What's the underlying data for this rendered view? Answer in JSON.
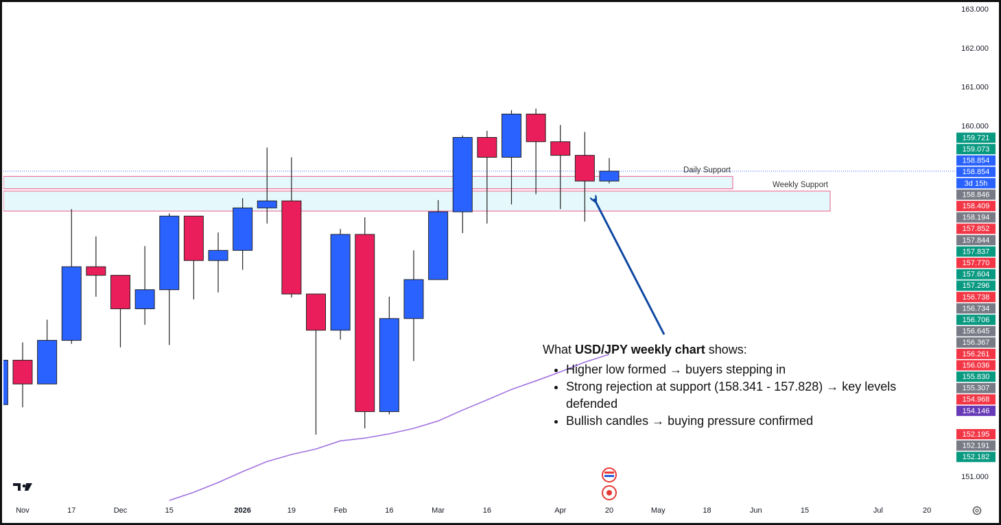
{
  "chart_data": {
    "type": "candlestick",
    "categories": [
      null,
      "Nov",
      null,
      "17",
      null,
      "Dec",
      null,
      "15",
      null,
      null,
      "2026",
      null,
      "19",
      null,
      "Feb",
      null,
      "16",
      null,
      "Mar",
      null,
      "16",
      null,
      null,
      "Apr",
      null,
      "20",
      null,
      "May",
      null,
      "18",
      null,
      "Jun",
      null,
      "15",
      null,
      null,
      "Jul",
      null,
      "20"
    ],
    "open": [
      152.86,
      154.0,
      153.39,
      154.51,
      156.4,
      156.18,
      155.32,
      155.81,
      157.7,
      156.56,
      156.82,
      157.91,
      158.09,
      155.7,
      154.77,
      157.23,
      152.68,
      155.07,
      156.07,
      157.81,
      159.72,
      159.21,
      160.32,
      159.61,
      159.26,
      158.6,
      null,
      null,
      null,
      null,
      null,
      null,
      null,
      null,
      null,
      null,
      null,
      null,
      null
    ],
    "high": [
      154.0,
      154.46,
      155.04,
      157.88,
      157.18,
      156.18,
      156.93,
      157.77,
      157.7,
      157.28,
      158.16,
      159.46,
      159.21,
      155.7,
      157.37,
      157.67,
      155.63,
      156.82,
      158.11,
      159.77,
      159.89,
      160.42,
      160.46,
      160.04,
      159.86,
      159.19,
      null,
      null,
      null,
      null,
      null,
      null,
      null,
      null,
      null,
      null,
      null,
      null,
      null
    ],
    "low": [
      152.86,
      152.79,
      153.39,
      154.42,
      155.63,
      154.33,
      154.91,
      154.39,
      155.56,
      155.74,
      156.32,
      157.51,
      155.61,
      152.09,
      154.53,
      152.25,
      152.61,
      153.98,
      156.07,
      157.26,
      157.51,
      158.0,
      158.26,
      157.88,
      157.56,
      158.54,
      null,
      null,
      null,
      null,
      null,
      null,
      null,
      null,
      null,
      null,
      null,
      null,
      null
    ],
    "close": [
      154.0,
      153.39,
      154.51,
      156.4,
      156.18,
      155.32,
      155.81,
      157.7,
      156.56,
      156.82,
      157.91,
      158.09,
      155.7,
      154.77,
      157.23,
      152.68,
      155.07,
      156.07,
      157.81,
      159.72,
      159.21,
      160.32,
      159.61,
      159.26,
      158.6,
      158.854,
      null,
      null,
      null,
      null,
      null,
      null,
      null,
      null,
      null,
      null,
      null,
      null,
      null
    ],
    "up_color": "#2962ff",
    "down_color": "#e91e5a",
    "moving_average": {
      "color": "#a070e0",
      "values": [
        null,
        null,
        null,
        null,
        null,
        null,
        null,
        150.4,
        150.61,
        150.86,
        151.14,
        151.4,
        151.58,
        151.72,
        151.93,
        152.0,
        152.11,
        152.25,
        152.44,
        152.72,
        152.98,
        153.25,
        153.47,
        153.7,
        153.95,
        154.15,
        null,
        null,
        null,
        null,
        null,
        null,
        null,
        null,
        null,
        null,
        null,
        null,
        null
      ]
    },
    "last_price": 158.854,
    "ylim": [
      150.35,
      163.16
    ],
    "yticks": [
      {
        "value": 163,
        "label": "163.000"
      },
      {
        "value": 162,
        "label": "162.000"
      },
      {
        "value": 161,
        "label": "161.000"
      },
      {
        "value": 160,
        "label": "160.000"
      },
      {
        "value": 151,
        "label": "151.000"
      }
    ],
    "zones": [
      {
        "label": "Daily Support",
        "low": 158.4,
        "high": 158.72
      },
      {
        "label": "Weekly Support",
        "low": 157.828,
        "high": 158.341
      }
    ],
    "price_tags": [
      {
        "text": "159.721",
        "color": "#089981"
      },
      {
        "text": "159.073",
        "color": "#089981"
      },
      {
        "text": "158.854",
        "color": "#2962ff"
      },
      {
        "text": "158.854",
        "color": "#2962ff"
      },
      {
        "text": "3d 15h",
        "color": "#2962ff"
      },
      {
        "text": "158.846",
        "color": "#787b86"
      },
      {
        "text": "158.409",
        "color": "#f23645"
      },
      {
        "text": "158.194",
        "color": "#787b86"
      },
      {
        "text": "157.852",
        "color": "#f23645"
      },
      {
        "text": "157.844",
        "color": "#787b86"
      },
      {
        "text": "157.837",
        "color": "#089981"
      },
      {
        "text": "157.770",
        "color": "#f23645"
      },
      {
        "text": "157.604",
        "color": "#089981"
      },
      {
        "text": "157.296",
        "color": "#089981"
      },
      {
        "text": "156.738",
        "color": "#f23645"
      },
      {
        "text": "156.734",
        "color": "#787b86"
      },
      {
        "text": "156.706",
        "color": "#089981"
      },
      {
        "text": "156.645",
        "color": "#787b86"
      },
      {
        "text": "156.367",
        "color": "#787b86"
      },
      {
        "text": "156.261",
        "color": "#f23645"
      },
      {
        "text": "156.036",
        "color": "#f23645"
      },
      {
        "text": "155.830",
        "color": "#089981"
      },
      {
        "text": "155.307",
        "color": "#787b86"
      },
      {
        "text": "154.968",
        "color": "#f23645"
      },
      {
        "text": "154.146",
        "color": "#673ab7"
      },
      {
        "text": "152.195",
        "color": "#f23645"
      },
      {
        "text": "152.191",
        "color": "#787b86"
      },
      {
        "text": "152.182",
        "color": "#089981"
      }
    ],
    "annotation": {
      "prefix": "What ",
      "bold": "USD/JPY weekly chart",
      "suffix": " shows:",
      "bullets": [
        "Higher low formed → buyers stepping in",
        "Strong rejection at support (158.341 - 157.828) → key levels defended",
        "Bullish candles → buying pressure confirmed"
      ]
    }
  }
}
